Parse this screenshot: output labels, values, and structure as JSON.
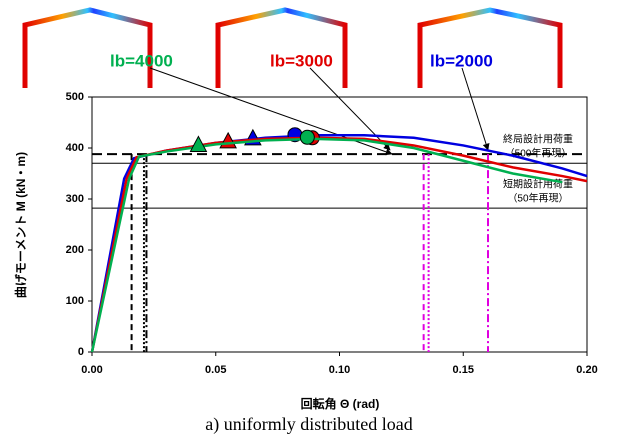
{
  "chart_data": {
    "type": "line",
    "caption": "a) uniformly distributed load",
    "xlabel": "回転角 Θ (rad)",
    "ylabel": "曲げモーメント M (kN・m)",
    "xlim": [
      0,
      0.2
    ],
    "ylim": [
      0,
      500
    ],
    "xticks": [
      {
        "value": 0,
        "label": "0.00"
      },
      {
        "value": 0.05,
        "label": "0.05"
      },
      {
        "value": 0.1,
        "label": "0.10"
      },
      {
        "value": 0.15,
        "label": "0.15"
      },
      {
        "value": 0.2,
        "label": "0.20"
      }
    ],
    "yticks": [
      0,
      100,
      200,
      300,
      400,
      500
    ],
    "series": [
      {
        "name": "lb=2000",
        "color": "#0000e0",
        "x": [
          0,
          0.013,
          0.017,
          0.03,
          0.05,
          0.07,
          0.09,
          0.11,
          0.13,
          0.15,
          0.17,
          0.19,
          0.2
        ],
        "values": [
          0,
          340,
          380,
          395,
          410,
          420,
          425,
          425,
          420,
          405,
          385,
          360,
          345
        ],
        "triangle": [
          0.065,
          418
        ],
        "circle": [
          0.082,
          426
        ]
      },
      {
        "name": "lb=3000",
        "color": "#e00000",
        "x": [
          0,
          0.014,
          0.018,
          0.03,
          0.05,
          0.07,
          0.09,
          0.11,
          0.13,
          0.15,
          0.17,
          0.19,
          0.2
        ],
        "values": [
          0,
          340,
          382,
          395,
          410,
          418,
          420,
          418,
          405,
          385,
          362,
          345,
          335
        ],
        "triangle": [
          0.055,
          412
        ],
        "circle": [
          0.089,
          420
        ]
      },
      {
        "name": "lb=4000",
        "color": "#00b050",
        "x": [
          0,
          0.015,
          0.019,
          0.03,
          0.05,
          0.07,
          0.09,
          0.11,
          0.13,
          0.15,
          0.17,
          0.19
        ],
        "values": [
          0,
          340,
          383,
          393,
          407,
          415,
          418,
          415,
          400,
          375,
          350,
          333
        ],
        "triangle": [
          0.043,
          405
        ],
        "circle": [
          0.087,
          421
        ]
      }
    ],
    "hlines": [
      {
        "value": 388,
        "dash": "10,5"
      },
      {
        "value": 370,
        "dash": ""
      },
      {
        "value": 282,
        "dash": ""
      }
    ],
    "vlines": [
      {
        "value": 0.016,
        "color": "#000000",
        "dash": "6,4"
      },
      {
        "value": 0.021,
        "color": "#000000",
        "dash": "2,2"
      },
      {
        "value": 0.022,
        "color": "#000000",
        "dash": "8,3,2,3"
      },
      {
        "value": 0.134,
        "color": "#e000e0",
        "dash": "6,4"
      },
      {
        "value": 0.136,
        "color": "#e000e0",
        "dash": "2,2"
      },
      {
        "value": 0.16,
        "color": "#e000e0",
        "dash": "8,3,2,3"
      }
    ],
    "annotations": [
      "終局設計用荷重",
      "（500年再現）",
      "短期設計用荷重",
      "（50年再現）"
    ]
  }
}
